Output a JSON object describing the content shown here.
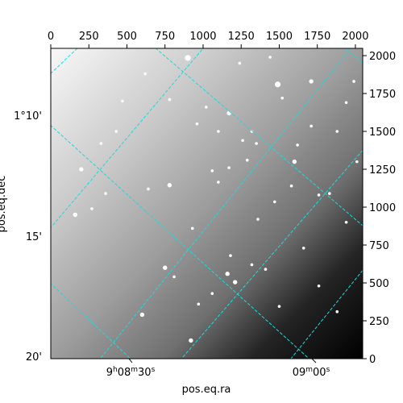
{
  "chart_data": {
    "type": "heatmap",
    "subtype": "astronomical image with world-coordinate grid overlay",
    "colormap": "grayscale",
    "brightness_gradient": "bright upper-left to dark lower-right",
    "pixel_axes": {
      "x": {
        "range": [
          0,
          2048
        ],
        "ticks": [
          0,
          250,
          500,
          750,
          1000,
          1250,
          1500,
          1750,
          2000
        ]
      },
      "y": {
        "range": [
          0,
          2048
        ],
        "ticks": [
          0,
          250,
          500,
          750,
          1000,
          1250,
          1500,
          1750,
          2000
        ]
      }
    },
    "world_axes": {
      "xlabel": "pos.eq.ra",
      "ylabel": "pos.eq.dec",
      "ra_tick_labels": [
        "9h08m30s",
        "09m00s"
      ],
      "dec_tick_labels": [
        "1°10'",
        "15'",
        "20'"
      ]
    },
    "grid": {
      "on": true,
      "color": "#22d8d8",
      "style": "dashed"
    },
    "stars": [
      [
        900,
        1985,
        4
      ],
      [
        1490,
        1810,
        4
      ],
      [
        1710,
        1830,
        3
      ],
      [
        1600,
        1300,
        3
      ],
      [
        1170,
        1620,
        3
      ],
      [
        1100,
        1500,
        2
      ],
      [
        780,
        1710,
        2
      ],
      [
        1320,
        1500,
        2
      ],
      [
        1710,
        1535,
        2
      ],
      [
        1240,
        1950,
        2
      ],
      [
        1440,
        1990,
        2
      ],
      [
        620,
        1880,
        2
      ],
      [
        1940,
        1690,
        2
      ],
      [
        1020,
        1660,
        2
      ],
      [
        960,
        1550,
        2
      ],
      [
        1620,
        1410,
        2
      ],
      [
        200,
        1250,
        3
      ],
      [
        160,
        950,
        3
      ],
      [
        270,
        990,
        2
      ],
      [
        360,
        1090,
        2
      ],
      [
        780,
        1145,
        3
      ],
      [
        640,
        1120,
        2
      ],
      [
        1100,
        1165,
        2
      ],
      [
        1170,
        1260,
        2
      ],
      [
        1290,
        1310,
        2
      ],
      [
        1470,
        1035,
        2
      ],
      [
        1360,
        920,
        2
      ],
      [
        930,
        860,
        2
      ],
      [
        1180,
        680,
        2
      ],
      [
        1320,
        620,
        2
      ],
      [
        1160,
        560,
        3
      ],
      [
        1210,
        505,
        3
      ],
      [
        750,
        600,
        3
      ],
      [
        810,
        540,
        2
      ],
      [
        1060,
        430,
        2
      ],
      [
        970,
        360,
        2
      ],
      [
        600,
        290,
        3
      ],
      [
        920,
        120,
        3
      ],
      [
        1410,
        590,
        2
      ],
      [
        1760,
        1080,
        2
      ],
      [
        1940,
        900,
        2
      ],
      [
        1830,
        1090,
        2
      ],
      [
        1880,
        310,
        2
      ],
      [
        1660,
        730,
        2
      ],
      [
        1760,
        480,
        2
      ],
      [
        1500,
        345,
        2
      ],
      [
        1580,
        1140,
        2
      ],
      [
        1880,
        1500,
        2
      ],
      [
        1520,
        1720,
        2
      ],
      [
        470,
        1700,
        2
      ],
      [
        430,
        1500,
        2
      ],
      [
        330,
        1420,
        2
      ],
      [
        1060,
        1240,
        2
      ],
      [
        1260,
        1440,
        2
      ],
      [
        1350,
        1420,
        2
      ],
      [
        1990,
        1830,
        2
      ],
      [
        2010,
        1300,
        2
      ]
    ]
  }
}
